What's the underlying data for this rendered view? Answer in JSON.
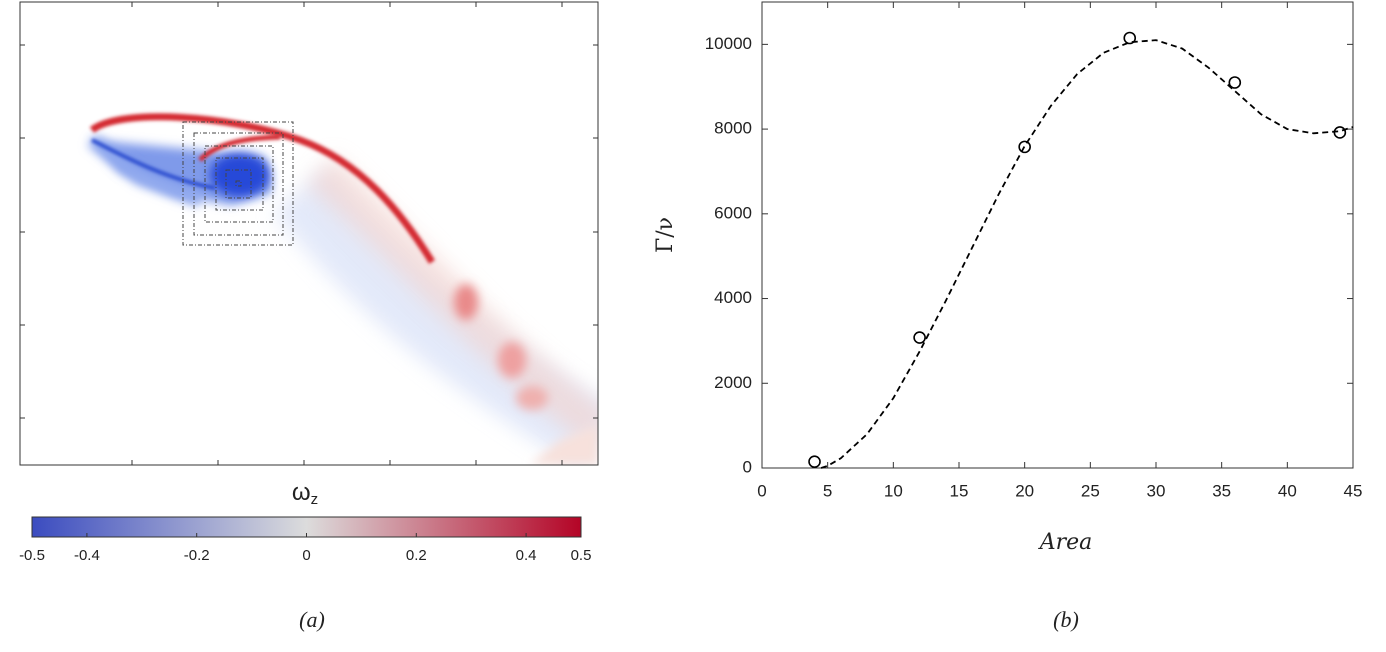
{
  "chart_data": [
    {
      "type": "heatmap",
      "caption": "(a)",
      "colorbar_label": {
        "symbol": "ω",
        "subscript": "z"
      },
      "colormap": [
        "#3b4cc0",
        "#dcdcdc",
        "#b40426"
      ],
      "clim": [
        -0.5,
        0.5
      ],
      "cticks": [
        -0.5,
        -0.4,
        -0.2,
        0,
        0.2,
        0.4,
        0.5
      ]
    },
    {
      "type": "scatter",
      "caption": "(b)",
      "xlabel": "Area",
      "ylabel": "Γ/ν",
      "xlim": [
        0,
        45
      ],
      "ylim": [
        0,
        11000
      ],
      "xticks": [
        0,
        5,
        10,
        15,
        20,
        25,
        30,
        35,
        40,
        45
      ],
      "yticks": [
        0,
        2000,
        4000,
        6000,
        8000,
        10000
      ],
      "series": [
        {
          "marker": "circle",
          "color": "#000000",
          "x": [
            4,
            12,
            20,
            28,
            36,
            44
          ],
          "values": [
            150,
            3080,
            7580,
            10150,
            9100,
            7920
          ]
        },
        {
          "line": "dashed",
          "color": "#000000",
          "x": [
            4.5,
            5,
            6,
            8,
            10,
            12,
            14,
            16,
            18,
            20,
            22,
            24,
            26,
            28,
            30,
            32,
            34,
            36,
            38,
            40,
            42,
            44,
            45
          ],
          "values": [
            0,
            50,
            230,
            800,
            1650,
            2750,
            3950,
            5200,
            6450,
            7600,
            8550,
            9300,
            9800,
            10050,
            10100,
            9900,
            9450,
            8900,
            8350,
            8000,
            7900,
            7950,
            8050
          ]
        }
      ]
    }
  ]
}
